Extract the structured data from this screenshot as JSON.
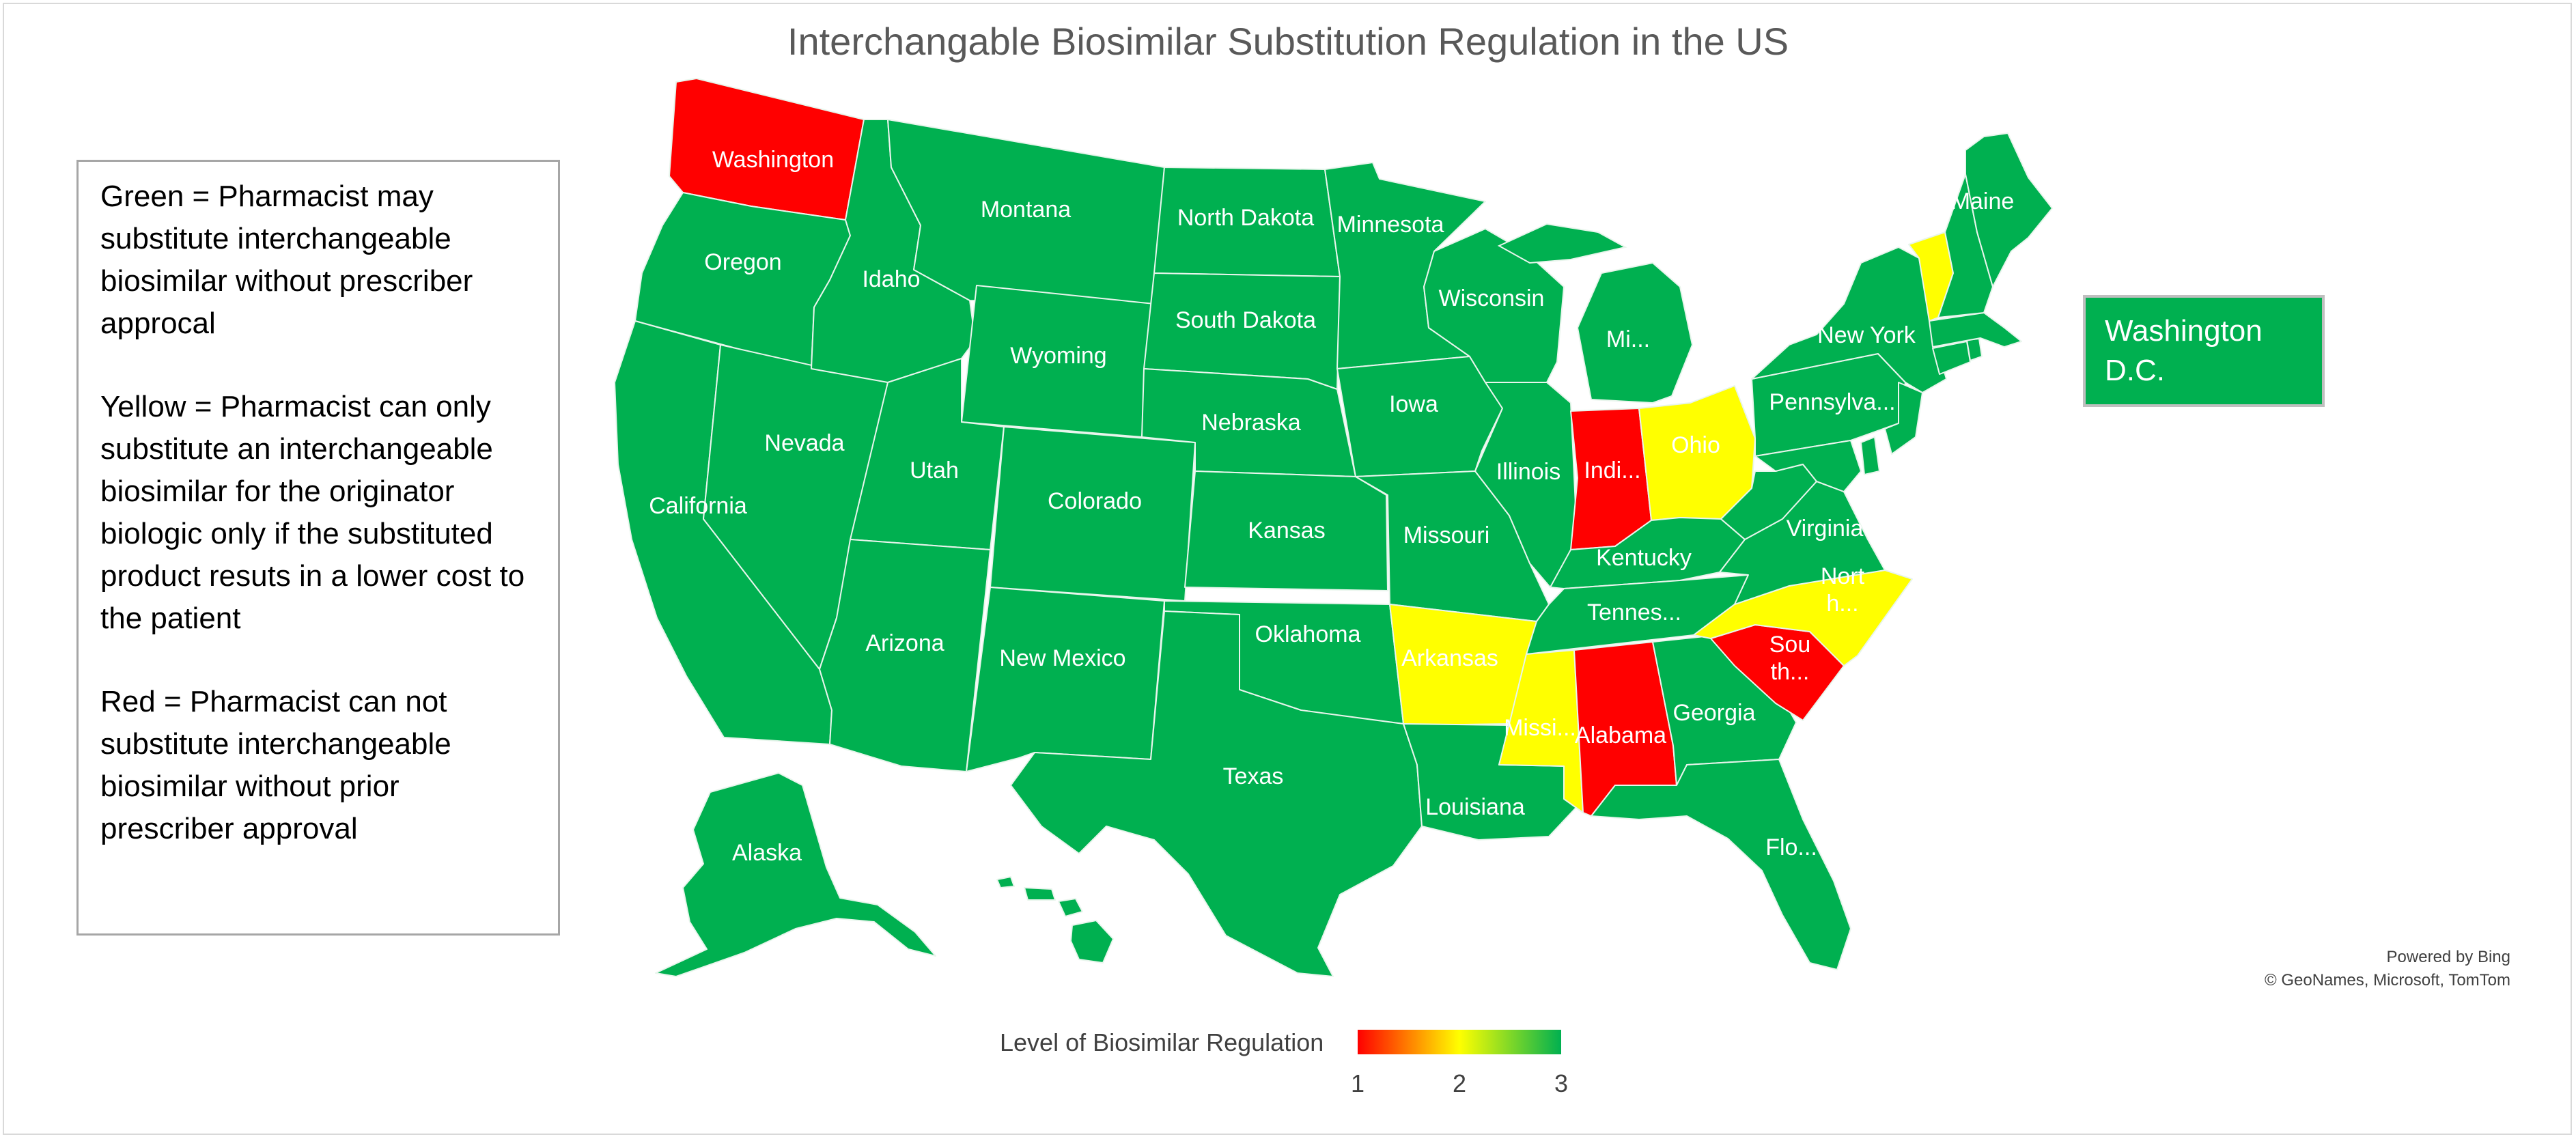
{
  "title": "Interchangable Biosimilar Substitution Regulation in the US",
  "legend_box": {
    "green": "Green = Pharmacist may substitute interchangeable biosimilar without prescriber approcal",
    "yellow": "Yellow = Pharmacist can only substitute an interchangeable biosimilar for the originator biologic only if the substituted product resuts in a lower cost to the patient",
    "red": "Red = Pharmacist can not substitute interchangeable biosimilar without prior prescriber approval"
  },
  "dc_box": {
    "label": "Washington D.C.",
    "level": 3
  },
  "colors": {
    "1": "#ff0000",
    "2": "#ffff00",
    "3": "#00b050",
    "border": "#e8f5ec"
  },
  "scale": {
    "label": "Level of Biosimilar Regulation",
    "ticks": [
      "1",
      "2",
      "3"
    ],
    "min": 1,
    "max": 3
  },
  "credit": {
    "line1": "Powered by Bing",
    "line2": "© GeoNames, Microsoft, TomTom"
  },
  "states": [
    {
      "id": "washington",
      "label": "Washington",
      "level": 1
    },
    {
      "id": "oregon",
      "label": "Oregon",
      "level": 3
    },
    {
      "id": "california",
      "label": "California",
      "level": 3
    },
    {
      "id": "nevada",
      "label": "Nevada",
      "level": 3
    },
    {
      "id": "idaho",
      "label": "Idaho",
      "level": 3
    },
    {
      "id": "montana",
      "label": "Montana",
      "level": 3
    },
    {
      "id": "wyoming",
      "label": "Wyoming",
      "level": 3
    },
    {
      "id": "utah",
      "label": "Utah",
      "level": 3
    },
    {
      "id": "arizona",
      "label": "Arizona",
      "level": 3
    },
    {
      "id": "colorado",
      "label": "Colorado",
      "level": 3
    },
    {
      "id": "new-mexico",
      "label": "New Mexico",
      "level": 3
    },
    {
      "id": "north-dakota",
      "label": "North Dakota",
      "level": 3
    },
    {
      "id": "south-dakota",
      "label": "South Dakota",
      "level": 3
    },
    {
      "id": "nebraska",
      "label": "Nebraska",
      "level": 3
    },
    {
      "id": "kansas",
      "label": "Kansas",
      "level": 3
    },
    {
      "id": "oklahoma",
      "label": "Oklahoma",
      "level": 3
    },
    {
      "id": "texas",
      "label": "Texas",
      "level": 3
    },
    {
      "id": "minnesota",
      "label": "Minnesota",
      "level": 3
    },
    {
      "id": "iowa",
      "label": "Iowa",
      "level": 3
    },
    {
      "id": "missouri",
      "label": "Missouri",
      "level": 3
    },
    {
      "id": "arkansas",
      "label": "Arkansas",
      "level": 2
    },
    {
      "id": "louisiana",
      "label": "Louisiana",
      "level": 3
    },
    {
      "id": "wisconsin",
      "label": "Wisconsin",
      "level": 3
    },
    {
      "id": "illinois",
      "label": "Illinois",
      "level": 3
    },
    {
      "id": "michigan",
      "label": "Mi...",
      "level": 3
    },
    {
      "id": "indiana",
      "label": "Indi...",
      "level": 1
    },
    {
      "id": "ohio",
      "label": "Ohio",
      "level": 2
    },
    {
      "id": "kentucky",
      "label": "Kentucky",
      "level": 3
    },
    {
      "id": "tennessee",
      "label": "Tennes...",
      "level": 3
    },
    {
      "id": "mississippi",
      "label": "Missi...",
      "level": 2
    },
    {
      "id": "alabama",
      "label": "Alabama",
      "level": 1
    },
    {
      "id": "georgia",
      "label": "Georgia",
      "level": 3
    },
    {
      "id": "florida",
      "label": "Flo...",
      "level": 3
    },
    {
      "id": "south-carolina",
      "label": "Sou th...",
      "level": 1
    },
    {
      "id": "north-carolina",
      "label": "Nort h...",
      "level": 2
    },
    {
      "id": "virginia",
      "label": "Virginia",
      "level": 3
    },
    {
      "id": "west-virginia",
      "label": "",
      "level": 3
    },
    {
      "id": "pennsylvania",
      "label": "Pennsylva...",
      "level": 3
    },
    {
      "id": "new-york",
      "label": "New York",
      "level": 3
    },
    {
      "id": "vermont",
      "label": "",
      "level": 2
    },
    {
      "id": "maine",
      "label": "Maine",
      "level": 3
    },
    {
      "id": "new-hampshire",
      "label": "",
      "level": 3
    },
    {
      "id": "maryland",
      "label": "",
      "level": 3
    },
    {
      "id": "new-jersey",
      "label": "",
      "level": 3
    },
    {
      "id": "delaware",
      "label": "",
      "level": 3
    },
    {
      "id": "massachusetts",
      "label": "",
      "level": 3
    },
    {
      "id": "connecticut",
      "label": "",
      "level": 3
    },
    {
      "id": "rhode-island",
      "label": "",
      "level": 3
    },
    {
      "id": "alaska",
      "label": "Alaska",
      "level": 3
    },
    {
      "id": "hawaii",
      "label": "",
      "level": 3
    }
  ]
}
